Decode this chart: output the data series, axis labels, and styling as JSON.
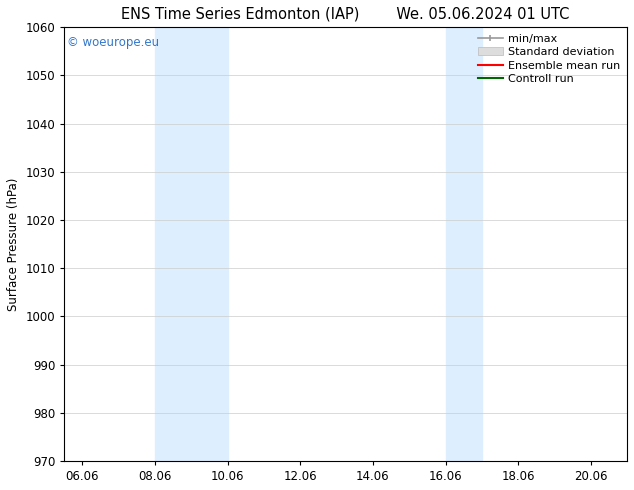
{
  "title_left": "ENS Time Series Edmonton (IAP)",
  "title_right": "We. 05.06.2024 01 UTC",
  "ylabel": "Surface Pressure (hPa)",
  "xlim": [
    5.5,
    21.0
  ],
  "ylim": [
    970,
    1060
  ],
  "yticks": [
    970,
    980,
    990,
    1000,
    1010,
    1020,
    1030,
    1040,
    1050,
    1060
  ],
  "xtick_labels": [
    "06.06",
    "08.06",
    "10.06",
    "12.06",
    "14.06",
    "16.06",
    "18.06",
    "20.06"
  ],
  "xtick_positions": [
    6.0,
    8.0,
    10.0,
    12.0,
    14.0,
    16.0,
    18.0,
    20.0
  ],
  "shaded_bands": [
    {
      "x_start": 8.0,
      "x_end": 10.0
    },
    {
      "x_start": 16.0,
      "x_end": 17.0
    }
  ],
  "shaded_color": "#ddeeff",
  "watermark_text": "© woeurope.eu",
  "watermark_color": "#3377cc",
  "bg_color": "#ffffff",
  "grid_color": "#cccccc",
  "font_size": 8.5,
  "title_fontsize": 10.5
}
